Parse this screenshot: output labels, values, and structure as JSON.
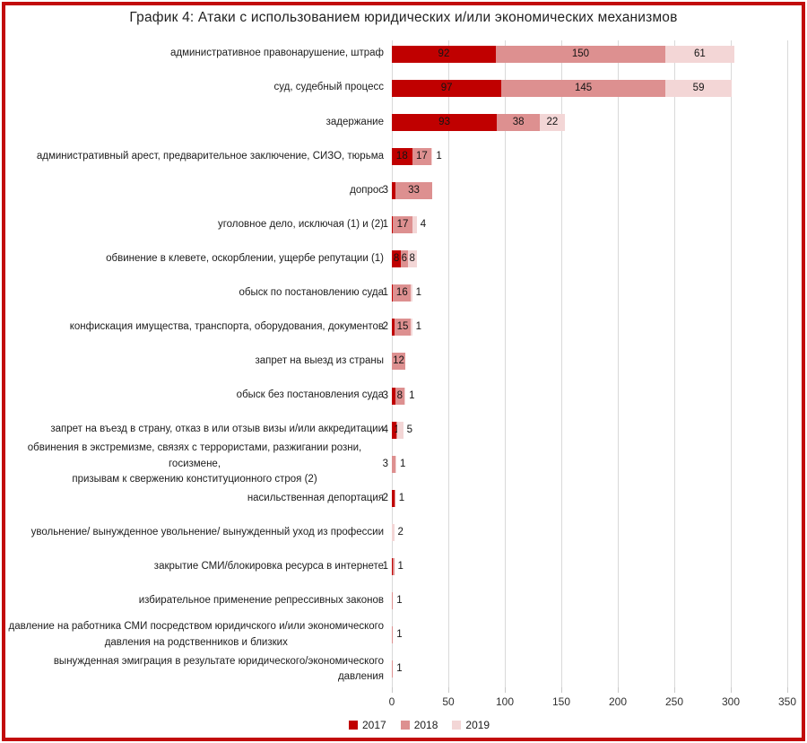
{
  "frame": {
    "border_color": "#c20b0b",
    "background": "#ffffff"
  },
  "chart_data": {
    "type": "bar",
    "orientation": "horizontal_stacked",
    "title": "График 4: Атаки с использованием юридических и/или экономических механизмов",
    "xlabel": "",
    "ylabel": "",
    "xlim": [
      0,
      350
    ],
    "xticks": [
      0,
      50,
      100,
      150,
      200,
      250,
      300,
      350
    ],
    "grid": "vertical",
    "legend_position": "bottom-left",
    "gridline_color": "#d9d9d9",
    "value_label_color": "#141414",
    "categories": [
      "административное правонарушение, штраф",
      "суд, судебный процесс",
      "задержание",
      "административный арест, предварительное заключение, СИЗО, тюрьма",
      "допрос",
      "уголовное дело, исключая (1) и (2)",
      "обвинение в клевете, оскорблении, ущербе репутации (1)",
      "обыск по постановлению суда",
      "конфискация имущества, транспорта, оборудования, документов",
      "запрет на выезд из страны",
      "обыск без постановления суда",
      "запрет на въезд в страну, отказ в или отзыв визы и/или аккредитации",
      "обвинения в экстремизме, связях с террористами, разжигании розни, госизмене,\nпризывам к свержению конституционного строя (2)",
      "насильственная депортация",
      "увольнение/ вынужденное увольнение/ вынужденный уход из профессии",
      "закрытие СМИ/блокировка ресурса в интернете",
      "избирательное применение репрессивных законов",
      "давление на работника СМИ посредством юридичского и/или экономического\nдавления на родственников и близких",
      "вынужденная эмиграция в результате юридического/экономического давления"
    ],
    "series": [
      {
        "name": "2017",
        "color": "#c00000",
        "values": [
          92,
          97,
          93,
          18,
          3,
          1,
          8,
          1,
          2,
          0,
          3,
          4,
          0,
          2,
          0,
          1,
          0,
          0,
          0
        ]
      },
      {
        "name": "2018",
        "color": "#dd9090",
        "values": [
          150,
          145,
          38,
          17,
          33,
          17,
          6,
          16,
          15,
          12,
          8,
          1,
          3,
          1,
          0,
          1,
          1,
          1,
          1
        ]
      },
      {
        "name": "2019",
        "color": "#f3d6d6",
        "values": [
          61,
          59,
          22,
          1,
          0,
          4,
          8,
          1,
          1,
          0,
          1,
          5,
          1,
          0,
          2,
          0,
          0,
          0,
          0
        ]
      }
    ]
  }
}
